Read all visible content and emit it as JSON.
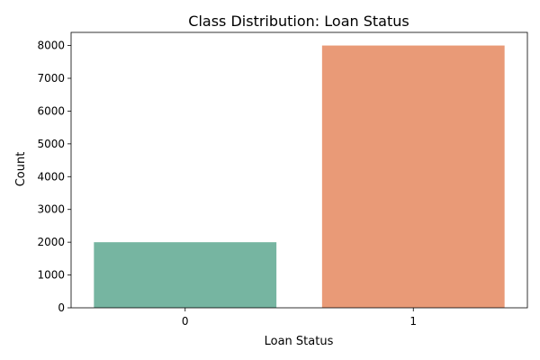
{
  "chart_data": {
    "type": "bar",
    "title": "Class Distribution: Loan Status",
    "xlabel": "Loan Status",
    "ylabel": "Count",
    "categories": [
      "0",
      "1"
    ],
    "values": [
      2000,
      8000
    ],
    "colors": [
      "#76b5a1",
      "#e99a77"
    ],
    "ylim": [
      0,
      8400
    ],
    "yticks": [
      0,
      1000,
      2000,
      3000,
      4000,
      5000,
      6000,
      7000,
      8000
    ],
    "ytick_labels": [
      "0",
      "1000",
      "2000",
      "3000",
      "4000",
      "5000",
      "6000",
      "7000",
      "8000"
    ],
    "grid": false,
    "legend": "none"
  }
}
